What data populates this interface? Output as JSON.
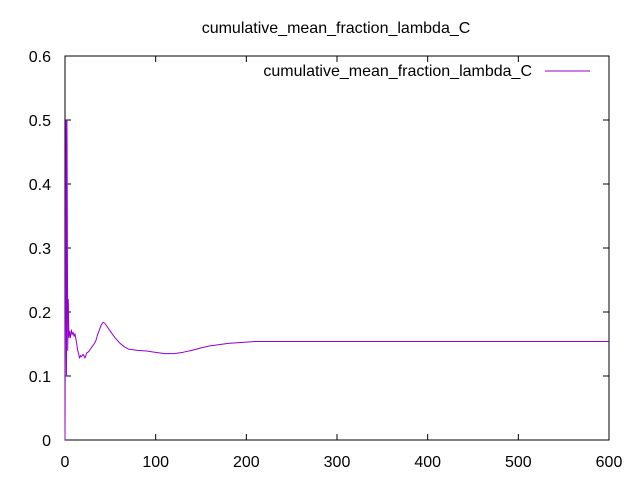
{
  "chart_data": {
    "type": "line",
    "title": "cumulative_mean_fraction_lambda_C",
    "xlabel": "",
    "ylabel": "",
    "xlim": [
      0,
      600
    ],
    "ylim": [
      0,
      0.6
    ],
    "x_ticks": [
      "0",
      "100",
      "200",
      "300",
      "400",
      "500",
      "600"
    ],
    "y_ticks": [
      "0",
      "0.1",
      "0.2",
      "0.3",
      "0.4",
      "0.5",
      "0.6"
    ],
    "grid": false,
    "legend_position": "top-right",
    "series": [
      {
        "name": "cumulative_mean_fraction_lambda_C",
        "color": "#9400d3",
        "points": [
          [
            0,
            0
          ],
          [
            1,
            0.5
          ],
          [
            1.6,
            0.1
          ],
          [
            2.2,
            0.5
          ],
          [
            3,
            0.14
          ],
          [
            3.6,
            0.22
          ],
          [
            4.3,
            0.16
          ],
          [
            5,
            0.17
          ],
          [
            6,
            0.16
          ],
          [
            7,
            0.172
          ],
          [
            8,
            0.165
          ],
          [
            9,
            0.168
          ],
          [
            10,
            0.162
          ],
          [
            11,
            0.166
          ],
          [
            12,
            0.158
          ],
          [
            13,
            0.15
          ],
          [
            14,
            0.14
          ],
          [
            15,
            0.135
          ],
          [
            16,
            0.128
          ],
          [
            17,
            0.132
          ],
          [
            18,
            0.13
          ],
          [
            20,
            0.134
          ],
          [
            22,
            0.128
          ],
          [
            24,
            0.136
          ],
          [
            26,
            0.138
          ],
          [
            28,
            0.142
          ],
          [
            30,
            0.146
          ],
          [
            32,
            0.15
          ],
          [
            34,
            0.155
          ],
          [
            36,
            0.165
          ],
          [
            38,
            0.172
          ],
          [
            40,
            0.18
          ],
          [
            42,
            0.184
          ],
          [
            44,
            0.182
          ],
          [
            46,
            0.178
          ],
          [
            48,
            0.174
          ],
          [
            50,
            0.17
          ],
          [
            55,
            0.16
          ],
          [
            60,
            0.152
          ],
          [
            65,
            0.146
          ],
          [
            70,
            0.142
          ],
          [
            80,
            0.14
          ],
          [
            90,
            0.139
          ],
          [
            100,
            0.137
          ],
          [
            110,
            0.135
          ],
          [
            120,
            0.135
          ],
          [
            130,
            0.137
          ],
          [
            140,
            0.14
          ],
          [
            150,
            0.144
          ],
          [
            160,
            0.147
          ],
          [
            170,
            0.149
          ],
          [
            180,
            0.151
          ],
          [
            190,
            0.152
          ],
          [
            200,
            0.153
          ],
          [
            210,
            0.154
          ],
          [
            220,
            0.154
          ],
          [
            300,
            0.154
          ],
          [
            400,
            0.154
          ],
          [
            500,
            0.154
          ],
          [
            600,
            0.154
          ]
        ]
      }
    ]
  }
}
